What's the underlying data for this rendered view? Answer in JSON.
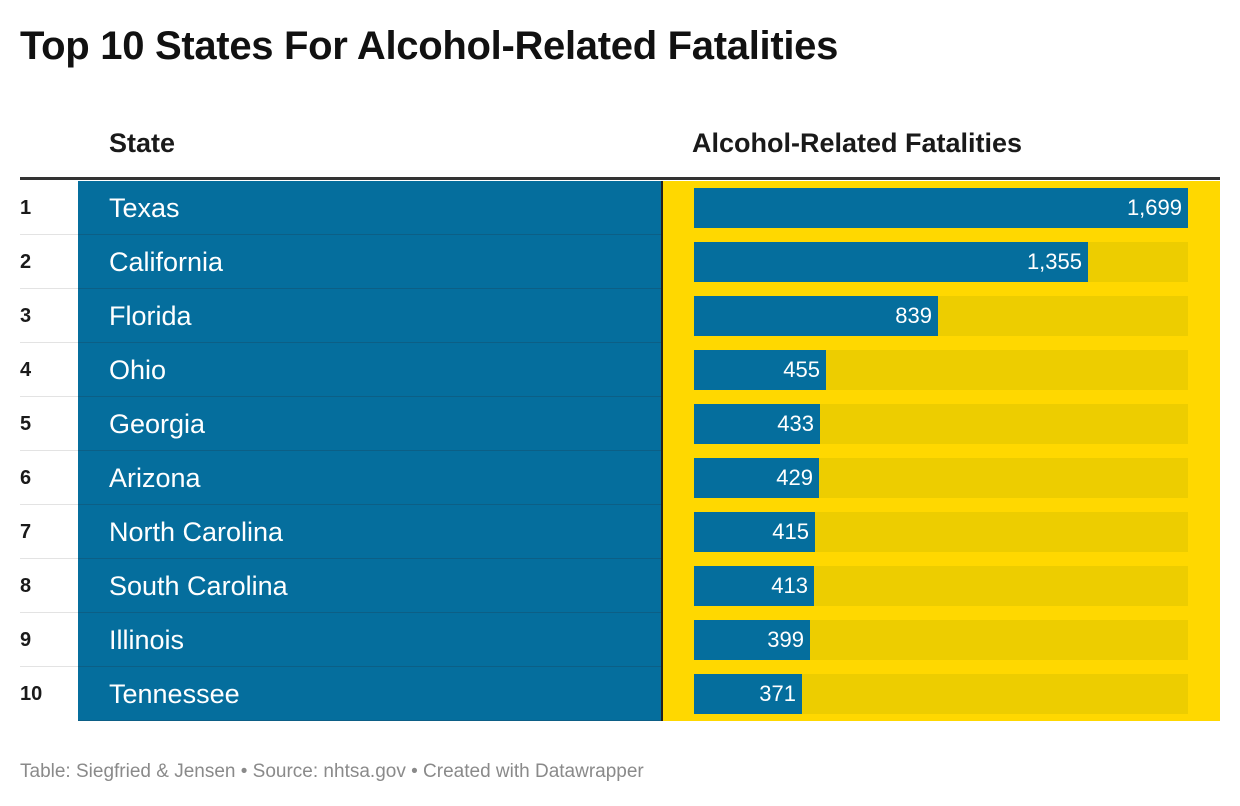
{
  "title": "Top 10 States For Alcohol-Related Fatalities",
  "columns": {
    "state": "State",
    "fatalities": "Alcohol-Related Fatalities"
  },
  "chart_data": {
    "type": "table",
    "title": "Top 10 States For Alcohol-Related Fatalities",
    "columns": [
      "State",
      "Alcohol-Related Fatalities"
    ],
    "ranks": [
      "1",
      "2",
      "3",
      "4",
      "5",
      "6",
      "7",
      "8",
      "9",
      "10"
    ],
    "categories": [
      "Texas",
      "California",
      "Florida",
      "Ohio",
      "Georgia",
      "Arizona",
      "North Carolina",
      "South Carolina",
      "Illinois",
      "Tennessee"
    ],
    "values": [
      1699,
      1355,
      839,
      455,
      433,
      429,
      415,
      413,
      399,
      371
    ],
    "value_labels": [
      "1,699",
      "1,355",
      "839",
      "455",
      "433",
      "429",
      "415",
      "413",
      "399",
      "371"
    ],
    "bar_max": 1699
  },
  "colors": {
    "state_cell": "#056e9d",
    "bar_fill": "#056e9d",
    "bar_cell": "#ffd800",
    "bar_track": "#edcd00"
  },
  "footer": "Table: Siegfried & Jensen • Source: nhtsa.gov • Created with Datawrapper"
}
